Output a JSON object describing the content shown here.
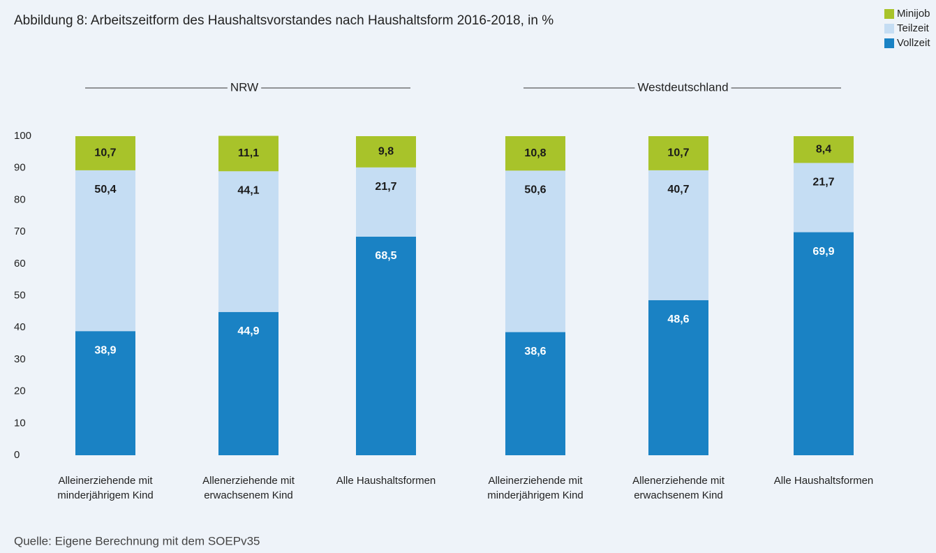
{
  "chart_data": {
    "type": "stacked_bar",
    "title": "Abbildung 8: Arbeitszeitform des Haushaltsvorstandes nach Haushaltsform 2016-2018, in %",
    "source": "Quelle: Eigene Berechnung mit dem SOEPv35",
    "groups": [
      "NRW",
      "Westdeutschland"
    ],
    "categories": [
      "Alleinerziehende mit minderjährigem Kind",
      "Allenerziehende mit erwachsenem Kind",
      "Alle Haushaltsformen",
      "Alleinerziehende mit minderjährigem Kind",
      "Allenerziehende mit erwachsenem Kind",
      "Alle Haushaltsformen"
    ],
    "series": [
      {
        "name": "Vollzeit",
        "color": "#1a82c4",
        "label_color": "#ffffff",
        "values": [
          38.9,
          44.9,
          68.5,
          38.6,
          48.6,
          69.9
        ],
        "value_labels": [
          "38,9",
          "44,9",
          "68,5",
          "38,6",
          "48,6",
          "69,9"
        ]
      },
      {
        "name": "Teilzeit",
        "color": "#c5ddf3",
        "label_color": "#1a1a1a",
        "values": [
          50.4,
          44.1,
          21.7,
          50.6,
          40.7,
          21.7
        ],
        "value_labels": [
          "50,4",
          "44,1",
          "21,7",
          "50,6",
          "40,7",
          "21,7"
        ]
      },
      {
        "name": "Minijob",
        "color": "#a8c32a",
        "label_color": "#1a1a1a",
        "values": [
          10.7,
          11.1,
          9.8,
          10.8,
          10.7,
          8.4
        ],
        "value_labels": [
          "10,7",
          "11,1",
          "9,8",
          "10,8",
          "10,7",
          "8,4"
        ]
      }
    ],
    "ylim": [
      0,
      100
    ],
    "yticks": [
      0,
      10,
      20,
      30,
      40,
      50,
      60,
      70,
      80,
      90,
      100
    ],
    "grid": false,
    "legend": "top-right"
  }
}
